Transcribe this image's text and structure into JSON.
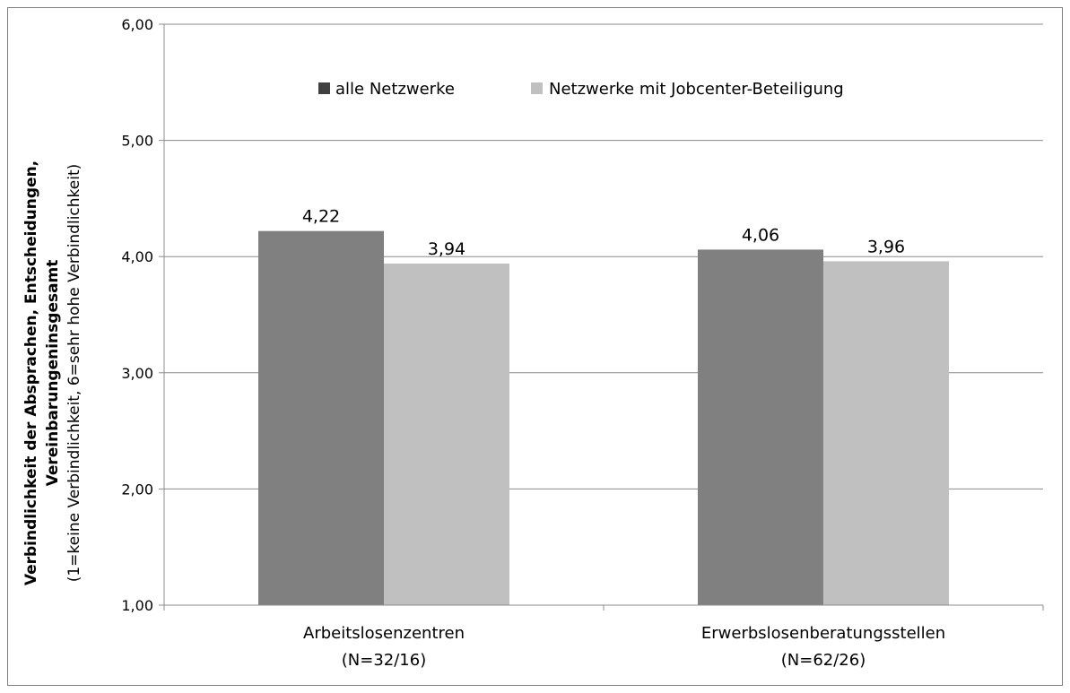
{
  "chart_data": {
    "type": "bar",
    "categories": [
      "Arbeitslosenzentren",
      "Erwerbslosenberatungsstellen"
    ],
    "category_notes": [
      "(N=32/16)",
      "(N=62/26)"
    ],
    "series": [
      {
        "name": "alle Netzwerke",
        "values": [
          4.22,
          4.06
        ],
        "labels": [
          "4,22",
          "4,06"
        ],
        "color": "#808080"
      },
      {
        "name": "Netzwerke mit Jobcenter-Beteiligung",
        "values": [
          3.94,
          3.96
        ],
        "labels": [
          "3,94",
          "3,96"
        ],
        "color": "#c0c0c0"
      }
    ],
    "ylabel_lines": [
      "Verbindlichkeit  der Absprachen, Entscheidungen,",
      "Vereinbarungeninsgesamt"
    ],
    "ylabel_note": "(1=keine Verbindlichkeit, 6=sehr hohe Verbindlichkeit)",
    "ylim": [
      1,
      6
    ],
    "yticks": [
      1,
      2,
      3,
      4,
      5,
      6
    ],
    "ytick_labels": [
      "1,00",
      "2,00",
      "3,00",
      "4,00",
      "5,00",
      "6,00"
    ],
    "grid": true,
    "legend_position": "top"
  }
}
